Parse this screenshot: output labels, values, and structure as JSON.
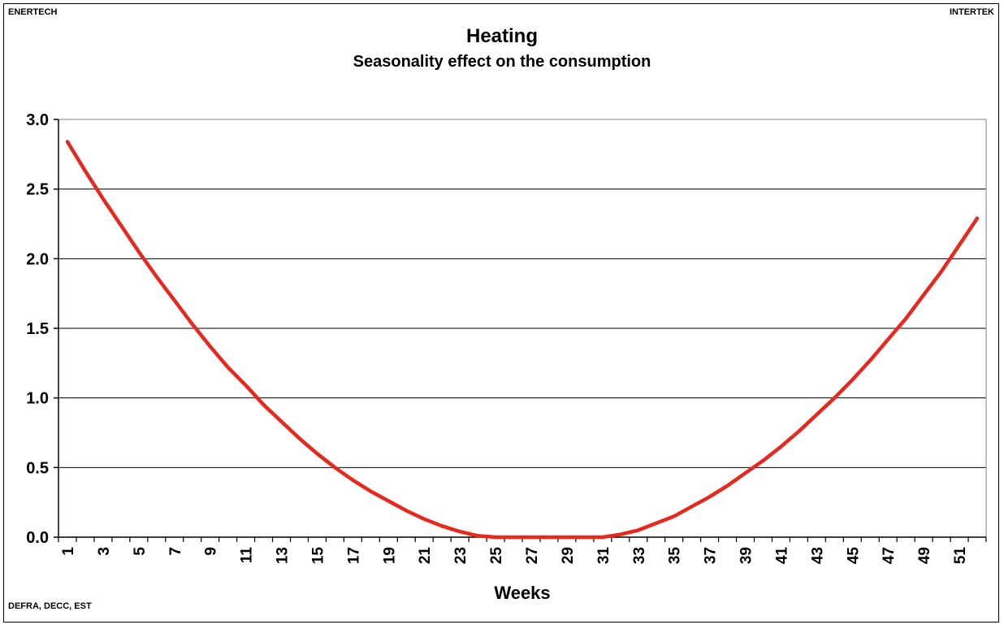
{
  "source_left": "ENERTECH",
  "source_right": "INTERTEK",
  "footer_left": "DEFRA, DECC, EST",
  "chart_data": {
    "type": "line",
    "title": "Heating",
    "subtitle": "Seasonality effect on the consumption",
    "xlabel": "Weeks",
    "ylabel": "",
    "ylim": [
      0,
      3.0
    ],
    "yticks": [
      "0.0",
      "0.5",
      "1.0",
      "1.5",
      "2.0",
      "2.5",
      "3.0"
    ],
    "xticks": [
      "1",
      "3",
      "5",
      "7",
      "9",
      "11",
      "13",
      "15",
      "17",
      "19",
      "21",
      "23",
      "25",
      "27",
      "29",
      "31",
      "33",
      "35",
      "37",
      "39",
      "41",
      "43",
      "45",
      "47",
      "49",
      "51"
    ],
    "grid": true,
    "line_color": "#e8281e",
    "series": [
      {
        "x": [
          1,
          2,
          3,
          4,
          5,
          6,
          7,
          8,
          9,
          10,
          11,
          12,
          13,
          14,
          15,
          16,
          17,
          18,
          19,
          20,
          21,
          22,
          23,
          24,
          25,
          26,
          27,
          28,
          29,
          30,
          31,
          32,
          33,
          34,
          35,
          36,
          37,
          38,
          39,
          40,
          41,
          42,
          43,
          44,
          45,
          46,
          47,
          48,
          49,
          50,
          51,
          52
        ],
        "values": [
          2.84,
          2.63,
          2.43,
          2.24,
          2.05,
          1.87,
          1.7,
          1.53,
          1.37,
          1.22,
          1.09,
          0.95,
          0.83,
          0.71,
          0.6,
          0.5,
          0.41,
          0.33,
          0.26,
          0.19,
          0.13,
          0.08,
          0.04,
          0.01,
          0.0,
          0.0,
          0.0,
          0.0,
          0.0,
          0.0,
          0.0,
          0.02,
          0.05,
          0.1,
          0.15,
          0.22,
          0.29,
          0.37,
          0.46,
          0.55,
          0.65,
          0.76,
          0.88,
          1.0,
          1.13,
          1.27,
          1.42,
          1.57,
          1.74,
          1.91,
          2.1,
          2.29
        ]
      }
    ]
  }
}
